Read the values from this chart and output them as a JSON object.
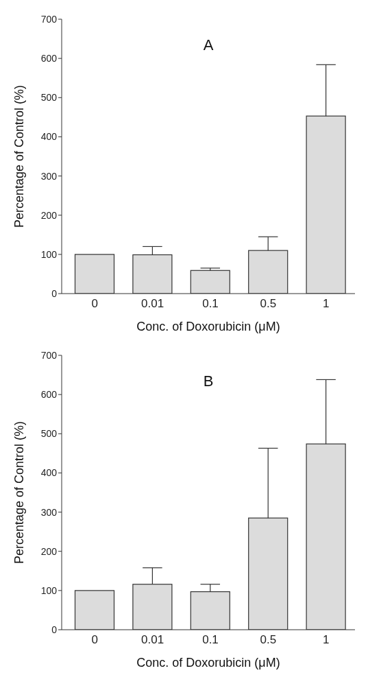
{
  "chart_data": [
    {
      "type": "bar",
      "title": "A",
      "xlabel": "Conc. of Doxorubicin (μM)",
      "ylabel": "Percentage of Control (%)",
      "categories": [
        "0",
        "0.01",
        "0.1",
        "0.5",
        "1"
      ],
      "values": [
        100,
        99,
        59,
        110,
        453
      ],
      "errors": [
        null,
        [
          99,
          120
        ],
        [
          59,
          65
        ],
        [
          110,
          145
        ],
        [
          453,
          584
        ]
      ],
      "color": "#dcdcdc",
      "ylim": [
        0,
        700
      ],
      "yticks": [
        0,
        100,
        200,
        300,
        400,
        500,
        600,
        700
      ],
      "grid": false
    },
    {
      "type": "bar",
      "title": "B",
      "xlabel": "Conc. of Doxorubicin (μM)",
      "ylabel": "Percentage of Control (%)",
      "categories": [
        "0",
        "0.01",
        "0.1",
        "0.5",
        "1"
      ],
      "values": [
        100,
        116,
        97,
        285,
        474
      ],
      "errors": [
        null,
        [
          116,
          158
        ],
        [
          97,
          116
        ],
        [
          285,
          463
        ],
        [
          474,
          638
        ]
      ],
      "color": "#dcdcdc",
      "ylim": [
        0,
        700
      ],
      "yticks": [
        0,
        100,
        200,
        300,
        400,
        500,
        600,
        700
      ],
      "grid": false
    }
  ]
}
